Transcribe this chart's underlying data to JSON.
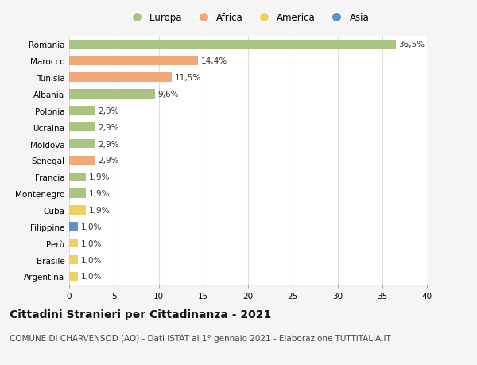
{
  "countries": [
    "Romania",
    "Marocco",
    "Tunisia",
    "Albania",
    "Polonia",
    "Ucraina",
    "Moldova",
    "Senegal",
    "Francia",
    "Montenegro",
    "Cuba",
    "Filippine",
    "Perù",
    "Brasile",
    "Argentina"
  ],
  "values": [
    36.5,
    14.4,
    11.5,
    9.6,
    2.9,
    2.9,
    2.9,
    2.9,
    1.9,
    1.9,
    1.9,
    1.0,
    1.0,
    1.0,
    1.0
  ],
  "labels": [
    "36,5%",
    "14,4%",
    "11,5%",
    "9,6%",
    "2,9%",
    "2,9%",
    "2,9%",
    "2,9%",
    "1,9%",
    "1,9%",
    "1,9%",
    "1,0%",
    "1,0%",
    "1,0%",
    "1,0%"
  ],
  "continents": [
    "Europa",
    "Africa",
    "Africa",
    "Europa",
    "Europa",
    "Europa",
    "Europa",
    "Africa",
    "Europa",
    "Europa",
    "America",
    "Asia",
    "America",
    "America",
    "America"
  ],
  "continent_colors": {
    "Europa": "#a8c480",
    "Africa": "#f0a878",
    "America": "#f0d060",
    "Asia": "#6090c8"
  },
  "legend_order": [
    "Europa",
    "Africa",
    "America",
    "Asia"
  ],
  "title": "Cittadini Stranieri per Cittadinanza - 2021",
  "subtitle": "COMUNE DI CHARVENSOD (AO) - Dati ISTAT al 1° gennaio 2021 - Elaborazione TUTTITALIA.IT",
  "xlim": [
    0,
    40
  ],
  "xticks": [
    0,
    5,
    10,
    15,
    20,
    25,
    30,
    35,
    40
  ],
  "background_color": "#f5f5f5",
  "plot_bg_color": "#ffffff",
  "grid_color": "#dddddd",
  "title_fontsize": 10,
  "subtitle_fontsize": 7.5,
  "label_fontsize": 7.5,
  "tick_fontsize": 7.5,
  "legend_fontsize": 8.5
}
